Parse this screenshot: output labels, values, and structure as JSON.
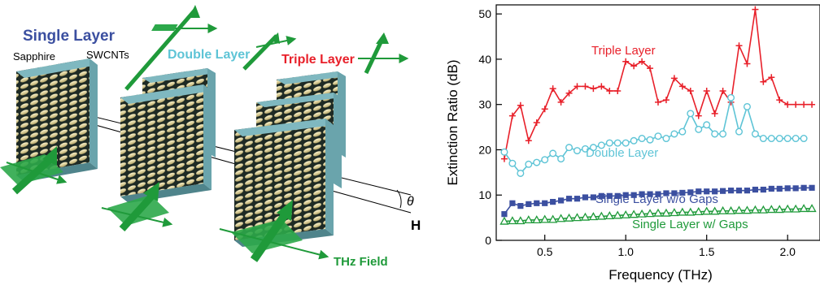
{
  "schematic": {
    "single_layer_label": "Single Layer",
    "double_layer_label": "Double Layer",
    "triple_layer_label": "Triple Layer",
    "sapphire_label": "Sapphire",
    "swcnts_label": "SWCNTs",
    "theta_label": "θ",
    "h_label": "H",
    "thz_field_label": "THz Field",
    "colors": {
      "single": "#3b4fa0",
      "double": "#5ec4d6",
      "triple": "#e8202a",
      "thz": "#1f9a3a",
      "substrate": "#7fb8c0",
      "nanotube": "#d9c98a"
    }
  },
  "chart_data": {
    "type": "line",
    "xlabel": "Frequency (THz)",
    "ylabel": "Extinction Ratio (dB)",
    "xlim": [
      0.2,
      2.2
    ],
    "ylim": [
      0,
      52
    ],
    "xticks": [
      "0.5",
      "1.0",
      "1.5",
      "2.0"
    ],
    "yticks": [
      "0",
      "10",
      "20",
      "30",
      "40",
      "50"
    ],
    "grid": false,
    "series": [
      {
        "name": "Triple Layer",
        "color": "#e8202a",
        "marker": "plus",
        "x": [
          0.25,
          0.3,
          0.35,
          0.4,
          0.45,
          0.5,
          0.55,
          0.6,
          0.65,
          0.7,
          0.75,
          0.8,
          0.85,
          0.9,
          0.95,
          1.0,
          1.05,
          1.1,
          1.15,
          1.2,
          1.25,
          1.3,
          1.35,
          1.4,
          1.45,
          1.5,
          1.55,
          1.6,
          1.65,
          1.7,
          1.75,
          1.8,
          1.85,
          1.9,
          1.95,
          2.0,
          2.05,
          2.1,
          2.15
        ],
        "y": [
          18.0,
          27.5,
          29.8,
          22.0,
          26.0,
          29.0,
          33.5,
          30.5,
          32.5,
          34.0,
          34.0,
          33.5,
          34.0,
          33.0,
          33.0,
          39.5,
          38.5,
          39.5,
          38.0,
          30.5,
          31.0,
          35.8,
          34.0,
          33.0,
          27.5,
          33.0,
          28.0,
          33.0,
          30.5,
          43.0,
          39.0,
          51.0,
          35.0,
          36.0,
          31.0,
          30.0,
          30.0,
          30.0,
          30.0
        ]
      },
      {
        "name": "Double Layer",
        "color": "#5ec4d6",
        "marker": "circle",
        "x": [
          0.25,
          0.3,
          0.35,
          0.4,
          0.45,
          0.5,
          0.55,
          0.6,
          0.65,
          0.7,
          0.75,
          0.8,
          0.85,
          0.9,
          0.95,
          1.0,
          1.05,
          1.1,
          1.15,
          1.2,
          1.25,
          1.3,
          1.35,
          1.4,
          1.45,
          1.5,
          1.55,
          1.6,
          1.65,
          1.7,
          1.75,
          1.8,
          1.85,
          1.9,
          1.95,
          2.0,
          2.05,
          2.1
        ],
        "y": [
          19.5,
          17.0,
          14.8,
          16.8,
          17.2,
          17.8,
          19.2,
          18.0,
          20.5,
          19.8,
          20.2,
          20.5,
          21.0,
          21.5,
          21.5,
          21.5,
          22.0,
          22.5,
          22.2,
          23.0,
          22.5,
          23.5,
          24.0,
          28.0,
          24.5,
          25.5,
          23.5,
          23.5,
          31.5,
          24.0,
          29.5,
          23.5,
          22.5,
          22.5,
          22.5,
          22.5,
          22.5,
          22.5
        ]
      },
      {
        "name": "Single Layer w/o Gaps",
        "color": "#3b4fa0",
        "marker": "square",
        "x": [
          0.25,
          0.3,
          0.35,
          0.4,
          0.45,
          0.5,
          0.55,
          0.6,
          0.65,
          0.7,
          0.75,
          0.8,
          0.85,
          0.9,
          0.95,
          1.0,
          1.05,
          1.1,
          1.15,
          1.2,
          1.25,
          1.3,
          1.35,
          1.4,
          1.45,
          1.5,
          1.55,
          1.6,
          1.65,
          1.7,
          1.75,
          1.8,
          1.85,
          1.9,
          1.95,
          2.0,
          2.05,
          2.1,
          2.15
        ],
        "y": [
          5.8,
          8.2,
          7.6,
          8.0,
          8.2,
          8.2,
          8.5,
          8.8,
          9.2,
          9.2,
          9.5,
          9.5,
          9.8,
          9.8,
          9.8,
          10.0,
          10.0,
          10.2,
          10.2,
          10.2,
          10.4,
          10.4,
          10.5,
          10.6,
          10.8,
          10.8,
          10.8,
          10.9,
          11.0,
          11.0,
          11.0,
          11.2,
          11.2,
          11.4,
          11.4,
          11.5,
          11.5,
          11.6,
          11.6
        ]
      },
      {
        "name": "Single Layer w/ Gaps",
        "color": "#1f9a3a",
        "marker": "triangle",
        "x": [
          0.25,
          0.3,
          0.35,
          0.4,
          0.45,
          0.5,
          0.55,
          0.6,
          0.65,
          0.7,
          0.75,
          0.8,
          0.85,
          0.9,
          0.95,
          1.0,
          1.05,
          1.1,
          1.15,
          1.2,
          1.25,
          1.3,
          1.35,
          1.4,
          1.45,
          1.5,
          1.55,
          1.6,
          1.65,
          1.7,
          1.75,
          1.8,
          1.85,
          1.9,
          1.95,
          2.0,
          2.05,
          2.1,
          2.15
        ],
        "y": [
          4.2,
          4.3,
          4.3,
          4.5,
          4.5,
          4.6,
          4.6,
          4.8,
          4.9,
          5.0,
          5.1,
          5.2,
          5.3,
          5.4,
          5.5,
          5.6,
          5.7,
          5.8,
          5.9,
          6.0,
          6.0,
          6.1,
          6.2,
          6.2,
          6.3,
          6.4,
          6.4,
          6.5,
          6.5,
          6.6,
          6.6,
          6.7,
          6.7,
          6.8,
          6.8,
          6.9,
          6.9,
          7.0,
          7.0
        ]
      }
    ],
    "annotations": [
      {
        "text": "Triple Layer",
        "color": "#e8202a"
      },
      {
        "text": "Double Layer",
        "color": "#5ec4d6"
      },
      {
        "text": "Single Layer w/o Gaps",
        "color": "#3b4fa0"
      },
      {
        "text": "Single Layer w/ Gaps",
        "color": "#1f9a3a"
      }
    ]
  }
}
